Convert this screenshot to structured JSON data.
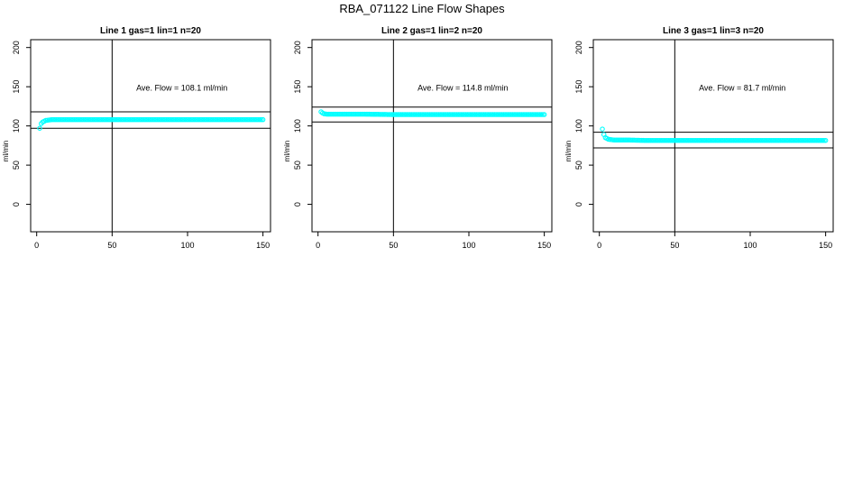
{
  "figure": {
    "title": "RBA_071122  Line Flow Shapes"
  },
  "chart_data": [
    {
      "type": "scatter",
      "title": "Line 1 gas=1 lin=1 n=20",
      "xlabel": "",
      "ylabel": "ml/min",
      "xlim": [
        -4,
        155
      ],
      "ylim": [
        -35,
        210
      ],
      "x_ticks": [
        0,
        50,
        100,
        150
      ],
      "y_ticks": [
        0,
        50,
        100,
        150,
        200
      ],
      "grid": false,
      "marker_color": "#00ffff",
      "hlines": [
        118,
        97
      ],
      "vline": 50,
      "annotation": "Ave. Flow =  108.1  ml/min",
      "series": [
        {
          "x": [
            2,
            3,
            4,
            5,
            6,
            8,
            10,
            15,
            20,
            30,
            50,
            75,
            100,
            125,
            150
          ],
          "y": [
            97,
            103,
            105,
            106,
            107,
            107.5,
            108,
            108,
            108,
            108,
            108,
            108,
            108,
            108,
            108
          ]
        }
      ]
    },
    {
      "type": "scatter",
      "title": "Line 2 gas=1 lin=2 n=20",
      "xlabel": "",
      "ylabel": "ml/min",
      "xlim": [
        -4,
        155
      ],
      "ylim": [
        -35,
        210
      ],
      "x_ticks": [
        0,
        50,
        100,
        150
      ],
      "y_ticks": [
        0,
        50,
        100,
        150,
        200
      ],
      "grid": false,
      "marker_color": "#00ffff",
      "hlines": [
        124,
        105
      ],
      "vline": 50,
      "annotation": "Ave. Flow =  114.8  ml/min",
      "series": [
        {
          "x": [
            2,
            3,
            4,
            6,
            10,
            20,
            30,
            50,
            75,
            100,
            125,
            150
          ],
          "y": [
            118,
            116.5,
            115.5,
            115,
            115,
            115,
            115,
            114.5,
            114.5,
            114.5,
            114.5,
            114.5
          ]
        }
      ]
    },
    {
      "type": "scatter",
      "title": "Line 3 gas=1 lin=3 n=20",
      "xlabel": "",
      "ylabel": "ml/min",
      "xlim": [
        -4,
        155
      ],
      "ylim": [
        -35,
        210
      ],
      "x_ticks": [
        0,
        50,
        100,
        150
      ],
      "y_ticks": [
        0,
        50,
        100,
        150,
        200
      ],
      "grid": false,
      "marker_color": "#00ffff",
      "hlines": [
        92,
        72
      ],
      "vline": 50,
      "annotation": "Ave. Flow =  81.7  ml/min",
      "series": [
        {
          "x": [
            2,
            3,
            4,
            5,
            6,
            8,
            10,
            15,
            20,
            30,
            50,
            75,
            100,
            125,
            150
          ],
          "y": [
            96,
            89,
            85,
            84,
            83,
            82.5,
            82,
            82,
            82,
            81.5,
            81.5,
            81.5,
            81.5,
            81.5,
            81.5
          ]
        }
      ]
    }
  ]
}
